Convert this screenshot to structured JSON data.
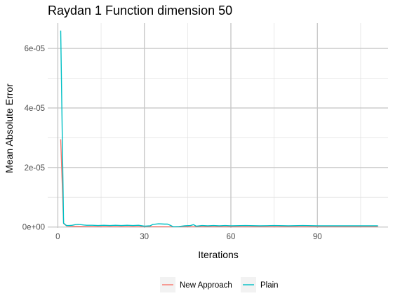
{
  "chart_data": {
    "type": "line",
    "title": "Raydan 1 Function dimension 50",
    "xlabel": "Iterations",
    "ylabel": "Mean Absolute Error",
    "xlim": [
      -3.5,
      114.5
    ],
    "ylim": [
      -3e-07,
      6.85e-05
    ],
    "x_ticks": [
      0,
      30,
      60,
      90
    ],
    "x_tick_labels": [
      "0",
      "30",
      "60",
      "90"
    ],
    "x_minor_ticks": [
      15,
      45,
      75,
      105
    ],
    "y_ticks": [
      0,
      2e-05,
      4e-05,
      6e-05
    ],
    "y_tick_labels": [
      "0e+00",
      "2e-05",
      "4e-05",
      "6e-05"
    ],
    "y_minor_ticks": [
      1e-05,
      3e-05,
      5e-05
    ],
    "grid": true,
    "legend_position": "bottom",
    "series": [
      {
        "name": "New Approach",
        "color": "#f8766d",
        "points": [
          [
            1,
            2.95e-05
          ],
          [
            2,
            1.2e-06
          ],
          [
            3,
            4e-07
          ],
          [
            5,
            3e-07
          ],
          [
            10,
            2e-07
          ],
          [
            20,
            1.5e-07
          ],
          [
            30,
            1.5e-07
          ],
          [
            40,
            1.2e-07
          ],
          [
            50,
            1.2e-07
          ],
          [
            60,
            1e-07
          ],
          [
            70,
            1e-07
          ],
          [
            80,
            1e-07
          ],
          [
            90,
            1e-07
          ],
          [
            100,
            1e-07
          ],
          [
            111,
            1e-07
          ]
        ]
      },
      {
        "name": "Plain",
        "color": "#00bfc4",
        "points": [
          [
            1,
            6.6e-05
          ],
          [
            2,
            1.3e-06
          ],
          [
            3,
            5e-07
          ],
          [
            4,
            5e-07
          ],
          [
            5,
            6e-07
          ],
          [
            6,
            8e-07
          ],
          [
            7,
            9e-07
          ],
          [
            8,
            8e-07
          ],
          [
            9,
            7e-07
          ],
          [
            10,
            6e-07
          ],
          [
            12,
            6e-07
          ],
          [
            14,
            5e-07
          ],
          [
            16,
            6e-07
          ],
          [
            18,
            5e-07
          ],
          [
            20,
            6e-07
          ],
          [
            22,
            5e-07
          ],
          [
            24,
            6e-07
          ],
          [
            26,
            5e-07
          ],
          [
            28,
            6e-07
          ],
          [
            30,
            3e-07
          ],
          [
            32,
            4e-07
          ],
          [
            33,
            9e-07
          ],
          [
            35,
            1.1e-06
          ],
          [
            37,
            1e-06
          ],
          [
            38,
            1e-06
          ],
          [
            39,
            6e-07
          ],
          [
            40,
            1e-07
          ],
          [
            42,
            2e-07
          ],
          [
            44,
            4e-07
          ],
          [
            46,
            5e-07
          ],
          [
            47,
            8e-07
          ],
          [
            48,
            3e-07
          ],
          [
            50,
            5e-07
          ],
          [
            52,
            4e-07
          ],
          [
            54,
            5e-07
          ],
          [
            56,
            4e-07
          ],
          [
            58,
            5e-07
          ],
          [
            60,
            4e-07
          ],
          [
            65,
            5e-07
          ],
          [
            70,
            4e-07
          ],
          [
            75,
            5e-07
          ],
          [
            80,
            4e-07
          ],
          [
            85,
            5e-07
          ],
          [
            90,
            4e-07
          ],
          [
            95,
            4e-07
          ],
          [
            100,
            4e-07
          ],
          [
            105,
            4e-07
          ],
          [
            111,
            4e-07
          ]
        ]
      }
    ]
  }
}
